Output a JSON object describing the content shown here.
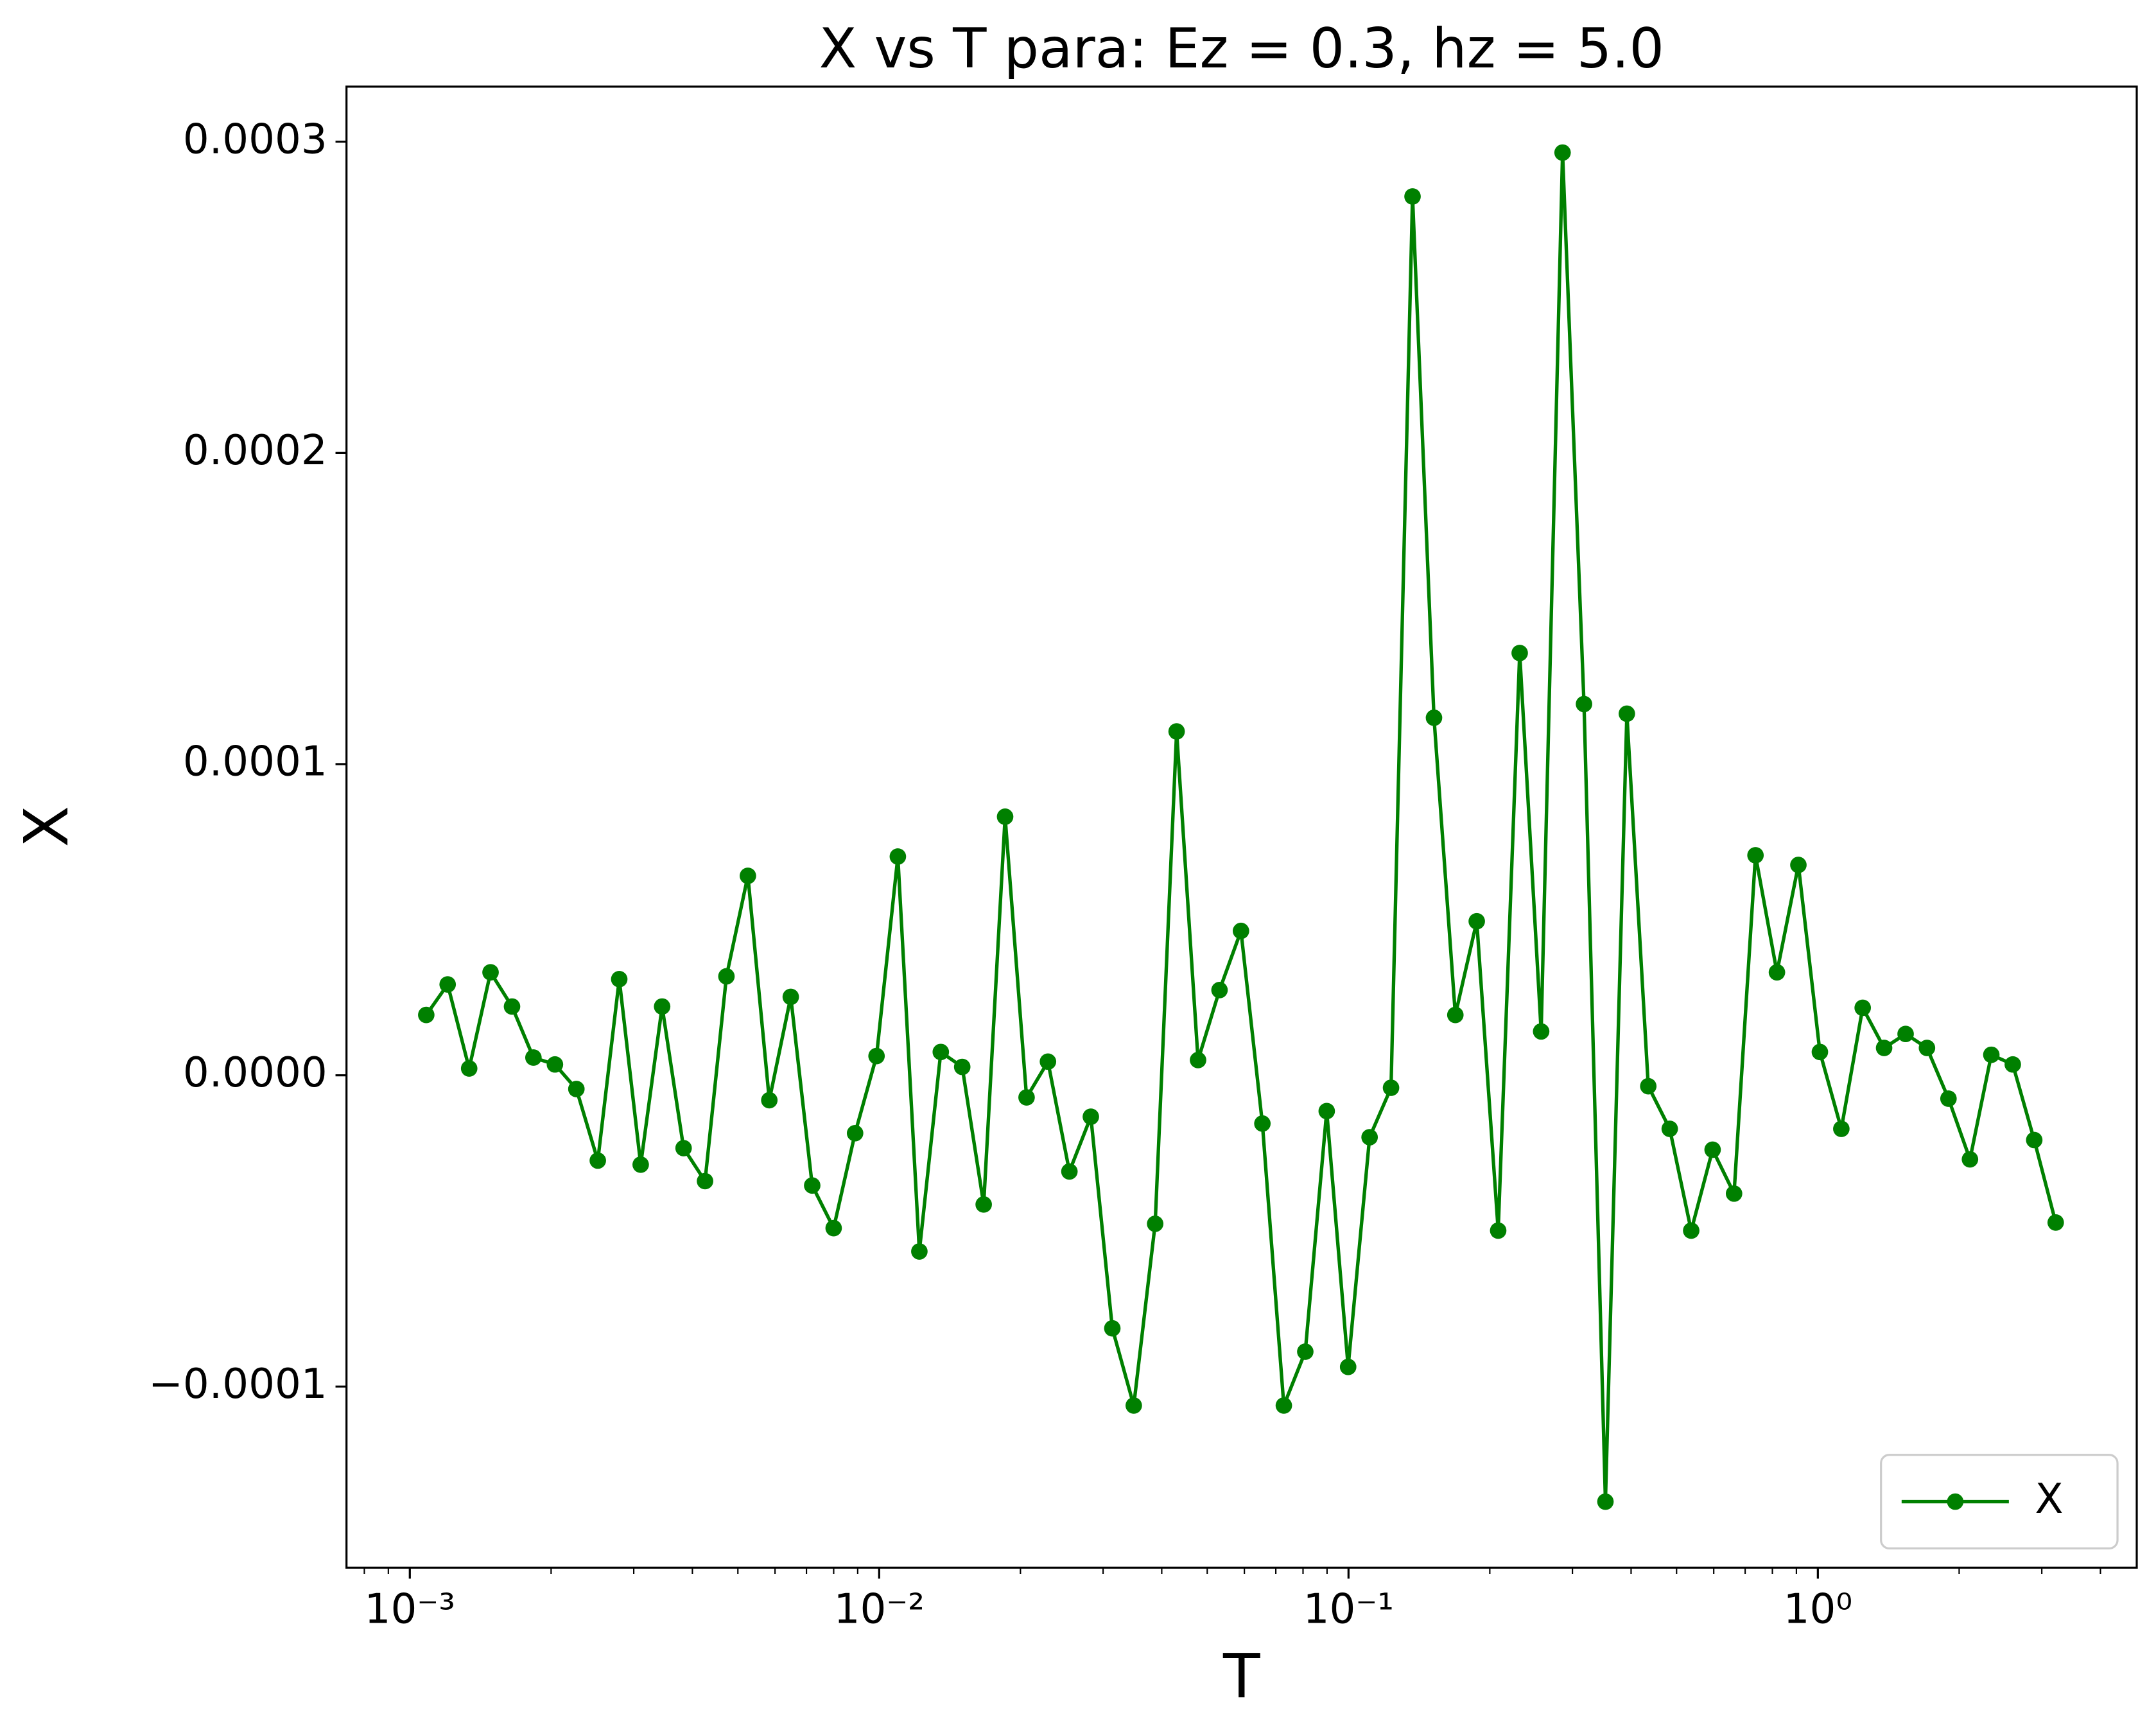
{
  "chart_data": {
    "type": "line",
    "title": "X vs T para: Ez = 0.3, hz = 5.0",
    "x_label": "T",
    "y_label": "X",
    "x": [
      0.001084,
      0.001204,
      0.001338,
      0.001486,
      0.001651,
      0.001834,
      0.002038,
      0.002264,
      0.002515,
      0.002794,
      0.003104,
      0.003448,
      0.003831,
      0.004256,
      0.004727,
      0.005252,
      0.005834,
      0.006481,
      0.0072,
      0.007999,
      0.008886,
      0.009872,
      0.01096,
      0.01218,
      0.01353,
      0.01503,
      0.0167,
      0.01855,
      0.02061,
      0.02289,
      0.02543,
      0.02825,
      0.03139,
      0.03487,
      0.03873,
      0.04303,
      0.0478,
      0.05311,
      0.059,
      0.06554,
      0.07281,
      0.08089,
      0.08986,
      0.09982,
      0.1109,
      0.1232,
      0.1369,
      0.1521,
      0.1689,
      0.1876,
      0.2084,
      0.2316,
      0.2573,
      0.2858,
      0.3175,
      0.3527,
      0.3918,
      0.4352,
      0.4835,
      0.5372,
      0.5967,
      0.6629,
      0.7364,
      0.8181,
      0.9089,
      1.01,
      1.122,
      1.246,
      1.384,
      1.538,
      1.708,
      1.898,
      2.109,
      2.342,
      2.602,
      2.891,
      3.212
    ],
    "series": [
      {
        "name": "X",
        "color": "#008000",
        "values": [
          1.94e-05,
          2.92e-05,
          2.2e-06,
          3.31e-05,
          2.21e-05,
          5.7e-06,
          3.5e-06,
          -4.4e-06,
          -2.74e-05,
          3.09e-05,
          -2.87e-05,
          2.21e-05,
          -2.34e-05,
          -3.4e-05,
          3.18e-05,
          6.41e-05,
          -8e-06,
          2.52e-05,
          -3.54e-05,
          -4.91e-05,
          -1.86e-05,
          6.2e-06,
          7.03e-05,
          -5.66e-05,
          7.5e-06,
          2.7e-06,
          -4.15e-05,
          8.31e-05,
          -7.1e-06,
          4.4e-06,
          -3.09e-05,
          -1.33e-05,
          -8.13e-05,
          -0.0001061,
          -4.77e-05,
          0.0001105,
          4.9e-06,
          2.74e-05,
          4.64e-05,
          -1.55e-05,
          -0.0001061,
          -8.88e-05,
          -1.15e-05,
          -9.37e-05,
          -1.99e-05,
          -4e-06,
          0.0002824,
          0.0001149,
          1.94e-05,
          4.95e-05,
          -4.99e-05,
          0.0001357,
          1.41e-05,
          0.0002965,
          0.0001193,
          -0.000137,
          0.0001162,
          -3.5e-06,
          -1.72e-05,
          -4.99e-05,
          -2.39e-05,
          -3.8e-05,
          7.07e-05,
          3.31e-05,
          6.76e-05,
          7.5e-06,
          -1.72e-05,
          2.17e-05,
          8.8e-06,
          1.33e-05,
          8.8e-06,
          -7.5e-06,
          -2.7e-05,
          6.6e-06,
          3.5e-06,
          -2.08e-05,
          -4.73e-05
        ]
      }
    ],
    "xlog": true,
    "xlim": [
      0.000733,
      4.78
    ],
    "ylim": [
      -0.0001582,
      0.0003177
    ],
    "xticks": [
      {
        "value": 0.001,
        "label": "10⁻³"
      },
      {
        "value": 0.01,
        "label": "10⁻²"
      },
      {
        "value": 0.1,
        "label": "10⁻¹"
      },
      {
        "value": 1,
        "label": "10⁰"
      }
    ],
    "xminorticks": [
      0.0008,
      0.0009,
      0.002,
      0.003,
      0.004,
      0.005,
      0.006,
      0.007,
      0.008,
      0.009,
      0.02,
      0.03,
      0.04,
      0.05,
      0.06,
      0.07,
      0.08,
      0.09,
      0.2,
      0.3,
      0.4,
      0.5,
      0.6,
      0.7,
      0.8,
      0.9,
      2,
      3,
      4
    ],
    "yticks": [
      {
        "value": -0.0001,
        "label": "−0.0001"
      },
      {
        "value": 0,
        "label": "0.0000"
      },
      {
        "value": 0.0001,
        "label": "0.0001"
      },
      {
        "value": 0.0002,
        "label": "0.0002"
      },
      {
        "value": 0.0003,
        "label": "0.0003"
      }
    ],
    "legend": "lower right",
    "grid": false
  }
}
